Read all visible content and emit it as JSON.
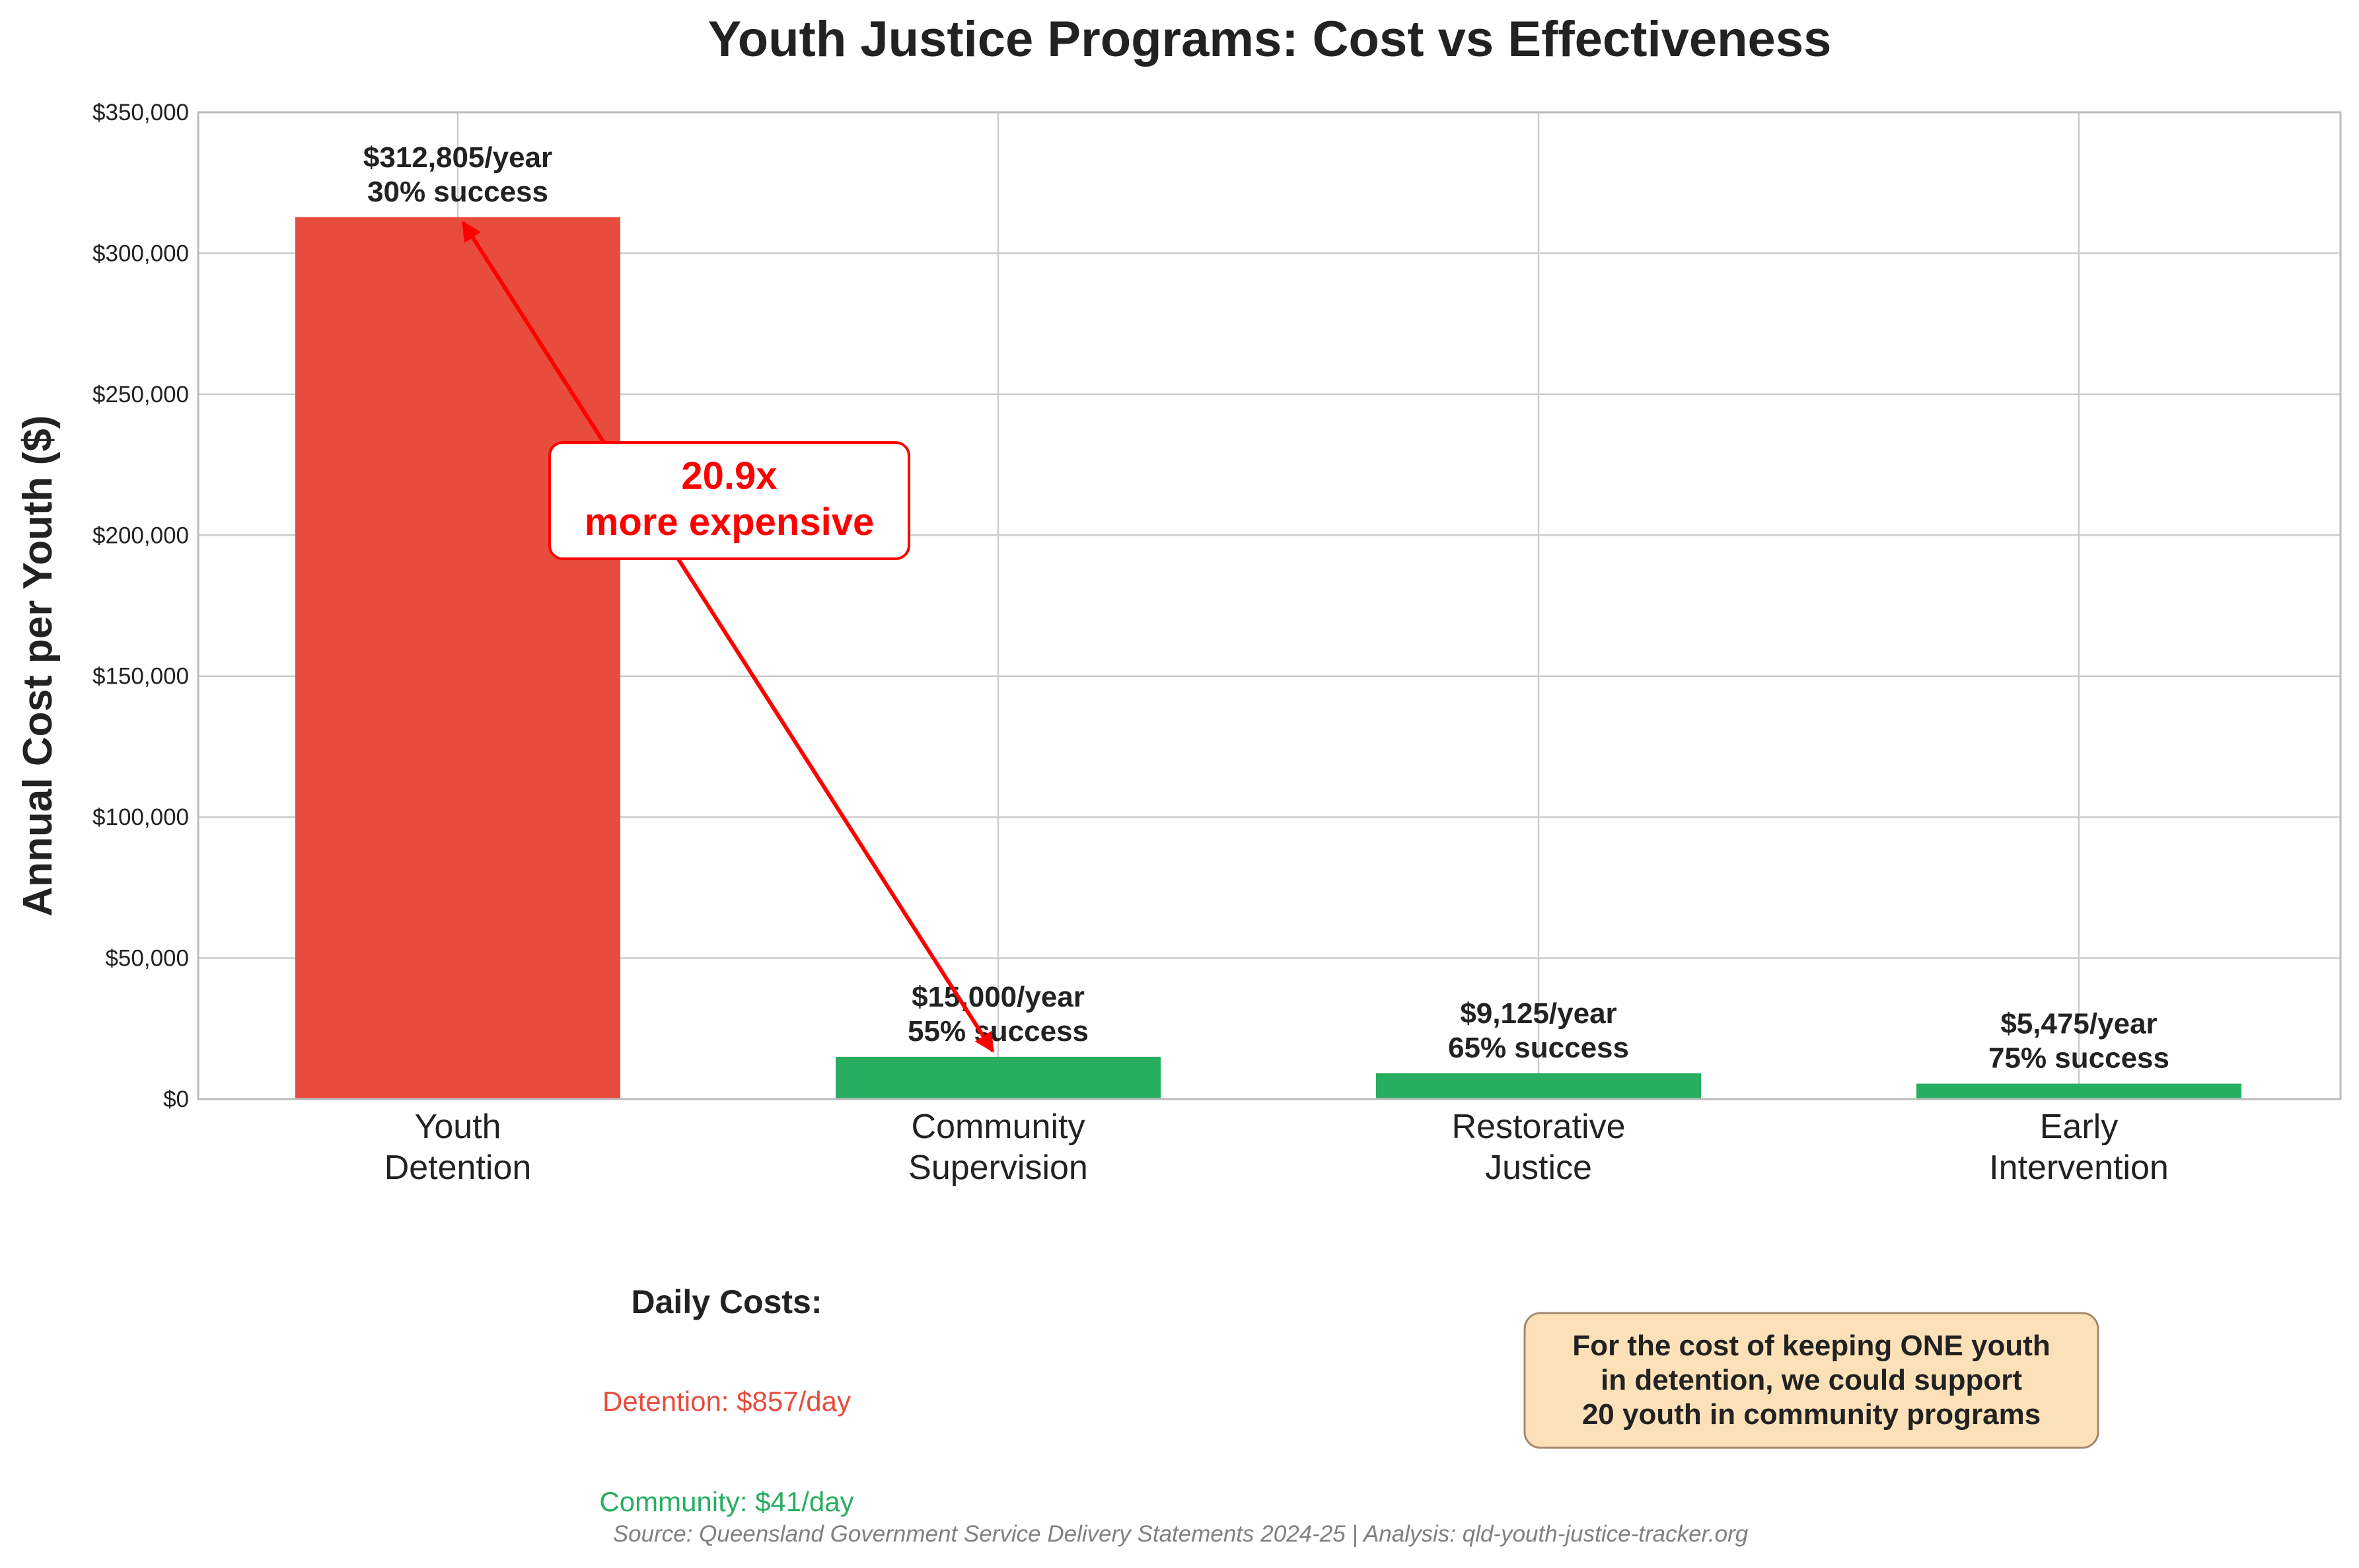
{
  "chart_data": {
    "type": "bar",
    "title": "Youth Justice Programs: Cost vs Effectiveness",
    "xlabel": "",
    "ylabel": "Annual Cost per Youth ($)",
    "ylim": [
      0,
      350000
    ],
    "yticks": [
      "$0",
      "$50,000",
      "$100,000",
      "$150,000",
      "$200,000",
      "$250,000",
      "$300,000",
      "$350,000"
    ],
    "ytick_values": [
      0,
      50000,
      100000,
      150000,
      200000,
      250000,
      300000,
      350000
    ],
    "grid": true,
    "categories": [
      [
        "Youth",
        "Detention"
      ],
      [
        "Community",
        "Supervision"
      ],
      [
        "Restorative",
        "Justice"
      ],
      [
        "Early",
        "Intervention"
      ]
    ],
    "values": [
      312805,
      15000,
      9125,
      5475
    ],
    "bar_labels": [
      [
        "$312,805/year",
        "30% success"
      ],
      [
        "$15,000/year",
        "55% success"
      ],
      [
        "$9,125/year",
        "65% success"
      ],
      [
        "$5,475/year",
        "75% success"
      ]
    ],
    "colors": [
      "#e74c3c",
      "#27ae60",
      "#27ae60",
      "#27ae60"
    ],
    "annotation": {
      "lines": [
        "20.9x",
        "more expensive"
      ],
      "color": "#ff0000",
      "from_category": 1,
      "from_value": 17000,
      "to_category": 0,
      "to_value": 312805
    }
  },
  "daily_costs": {
    "heading": "Daily Costs:",
    "items": [
      {
        "text": "Detention: $857/day",
        "color": "#e74c3c"
      },
      {
        "text": "Community: $41/day",
        "color": "#27ae60"
      }
    ]
  },
  "note_box": {
    "lines": [
      "For the cost of keeping ONE youth",
      "in detention, we could support",
      "20 youth in community programs"
    ],
    "fill": "#fce1b8",
    "border": "#a0896a"
  },
  "source": "Source: Queensland Government Service Delivery Statements 2024-25 | Analysis: qld-youth-justice-tracker.org"
}
